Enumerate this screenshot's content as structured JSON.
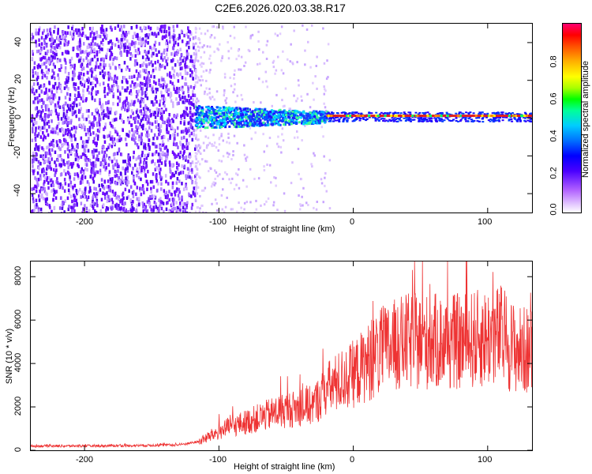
{
  "title": "C2E6.2026.020.03.38.R17",
  "spectrogram": {
    "xlabel": "Height of straight line (km)",
    "ylabel": "Frequency (Hz)",
    "xticks": [
      "-200",
      "-100",
      "0",
      "100"
    ],
    "yticks": [
      "40",
      "20",
      "0",
      "-20",
      "-40"
    ],
    "colorbar": {
      "label": "Normalized spectral amplitude",
      "ticks": [
        "0.0",
        "0.2",
        "0.4",
        "0.6",
        "0.8"
      ]
    }
  },
  "chart_data": [
    {
      "type": "heatmap",
      "title": "C2E6.2026.020.03.38.R17",
      "xlabel": "Height of straight line (km)",
      "ylabel": "Frequency (Hz)",
      "xlim": [
        -240,
        133
      ],
      "ylim": [
        -50,
        50
      ],
      "colorbar_label": "Normalized spectral amplitude",
      "colorbar_range": [
        0.0,
        1.0
      ],
      "features": [
        {
          "x_range": [
            -240,
            -118
          ],
          "freq_range": [
            -50,
            50
          ],
          "amplitude": 0.1
        },
        {
          "x_range": [
            -118,
            -20
          ],
          "freq_range": [
            -6,
            6
          ],
          "amplitude": 0.4
        },
        {
          "x_range": [
            -20,
            133
          ],
          "freq_center": 1,
          "amplitude": 0.95
        }
      ]
    },
    {
      "type": "line",
      "xlabel": "Height of straight line (km)",
      "ylabel": "SNR (10 * v/v)",
      "xlim": [
        -240,
        133
      ],
      "ylim": [
        0,
        8700
      ],
      "xticks": [
        -200,
        -100,
        0,
        100
      ],
      "yticks": [
        0,
        2000,
        4000,
        6000,
        8000
      ],
      "color": "#ee3333",
      "series": [
        {
          "x": [
            -240,
            -200,
            -160,
            -130,
            -115,
            -105,
            -95,
            -85,
            -75,
            -65,
            -55,
            -45,
            -35,
            -30,
            -25,
            -20,
            -15,
            -10,
            0,
            10,
            20,
            30,
            40,
            50,
            60,
            70,
            80,
            90,
            100,
            110,
            115,
            120,
            125,
            133
          ],
          "y": [
            200,
            200,
            220,
            250,
            400,
            700,
            1000,
            1200,
            1400,
            1600,
            1800,
            1900,
            2000,
            2100,
            2400,
            2800,
            3000,
            3200,
            3500,
            4000,
            4500,
            4800,
            5000,
            5000,
            5000,
            5000,
            5000,
            5100,
            5200,
            5300,
            5000,
            4700,
            4600,
            4600
          ]
        }
      ]
    }
  ],
  "snr": {
    "xlabel": "Height of straight line (km)",
    "ylabel": "SNR (10 * v/v)",
    "xticks": [
      "-200",
      "-100",
      "0",
      "100"
    ],
    "yticks": [
      "8000",
      "6000",
      "4000",
      "2000",
      "0"
    ]
  }
}
